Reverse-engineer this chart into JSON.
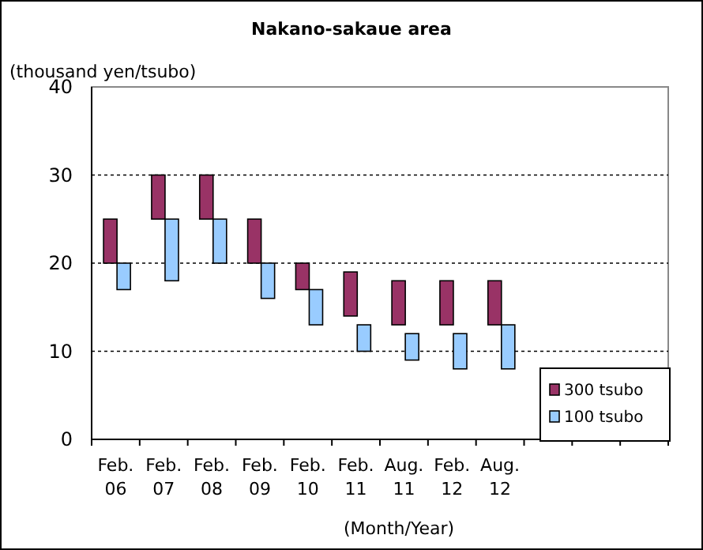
{
  "chart_data": {
    "type": "bar",
    "title": "Nakano-sakaue area",
    "ylabel": "(thousand yen/tsubo)",
    "xlabel": "(Month/Year)",
    "categories": [
      "Feb. 06",
      "Feb. 07",
      "Feb. 08",
      "Feb. 09",
      "Feb. 10",
      "Feb. 11",
      "Aug. 11",
      "Feb. 12",
      "Aug. 12",
      null,
      null,
      null
    ],
    "series": [
      {
        "name": "300 tsubo",
        "color": "#993366",
        "base": [
          20,
          25,
          25,
          20,
          17,
          14,
          13,
          13,
          13,
          null,
          null,
          null
        ],
        "values": [
          5,
          5,
          5,
          5,
          3,
          5,
          5,
          5,
          5,
          null,
          null,
          null
        ]
      },
      {
        "name": "100 tsubo",
        "color": "#99ccff",
        "base": [
          17,
          18,
          20,
          16,
          13,
          10,
          9,
          8,
          8,
          null,
          null,
          null
        ],
        "values": [
          3,
          7,
          5,
          4,
          4,
          3,
          3,
          4,
          5,
          null,
          null,
          null
        ]
      }
    ],
    "ylim": [
      0,
      40
    ],
    "yticks": [
      0,
      10,
      20,
      30,
      40
    ],
    "grid": "y",
    "legend": "bottom right"
  }
}
